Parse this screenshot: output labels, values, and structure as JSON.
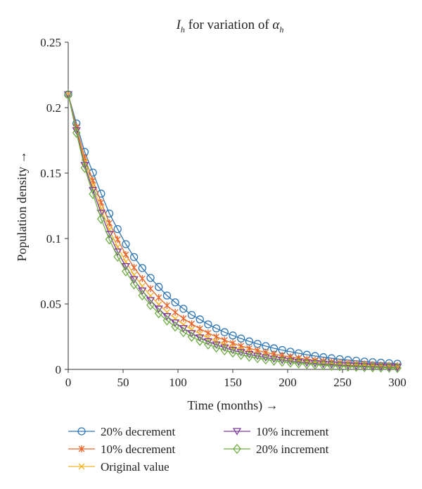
{
  "chart_data": {
    "type": "line",
    "title": {
      "main": "I",
      "main_sub": "h",
      "middle": " for variation of ",
      "param": "α",
      "param_sub": "h"
    },
    "xlabel": "Time (months) →",
    "ylabel": "Population density →",
    "xlim": [
      0,
      300
    ],
    "ylim": [
      0,
      0.25
    ],
    "xticks": [
      "0",
      "50",
      "100",
      "150",
      "200",
      "250",
      "300"
    ],
    "yticks": [
      "0",
      "0.05",
      "0.1",
      "0.15",
      "0.2",
      "0.25"
    ],
    "grid": false,
    "legend_position": "bottom",
    "x": [
      0,
      7.5,
      15,
      22.5,
      30,
      37.5,
      45,
      52.5,
      60,
      67.5,
      75,
      82.5,
      90,
      97.5,
      105,
      112.5,
      120,
      127.5,
      135,
      142.5,
      150,
      157.5,
      165,
      172.5,
      180,
      187.5,
      195,
      202.5,
      210,
      217.5,
      225,
      232.5,
      240,
      247.5,
      255,
      262.5,
      270,
      277.5,
      285,
      292.5,
      300
    ],
    "series": [
      {
        "name": "20% decrement",
        "color": "#2e75b6",
        "marker": "circle",
        "values": [
          0.21,
          0.1879,
          0.1662,
          0.1504,
          0.1343,
          0.1191,
          0.1072,
          0.0957,
          0.0858,
          0.0774,
          0.0699,
          0.063,
          0.0564,
          0.0512,
          0.0463,
          0.0416,
          0.0382,
          0.0344,
          0.0313,
          0.0284,
          0.0259,
          0.0236,
          0.0214,
          0.0195,
          0.0178,
          0.0161,
          0.0148,
          0.0135,
          0.0123,
          0.0112,
          0.0102,
          0.0093,
          0.0085,
          0.0078,
          0.0071,
          0.0066,
          0.006,
          0.0055,
          0.0051,
          0.0047,
          0.0043
        ]
      },
      {
        "name": "10% decrement",
        "color": "#e8652a",
        "marker": "asterisk",
        "values": [
          0.21,
          0.1852,
          0.1617,
          0.1443,
          0.1276,
          0.1118,
          0.0993,
          0.0877,
          0.0778,
          0.0694,
          0.0617,
          0.0549,
          0.0488,
          0.0436,
          0.0389,
          0.0348,
          0.0311,
          0.0278,
          0.0249,
          0.0223,
          0.02,
          0.0179,
          0.0161,
          0.0145,
          0.013,
          0.0117,
          0.0106,
          0.0095,
          0.0086,
          0.0078,
          0.007,
          0.0064,
          0.0058,
          0.0052,
          0.0048,
          0.0043,
          0.004,
          0.0036,
          0.0033,
          0.003,
          0.0028
        ]
      },
      {
        "name": "Original value",
        "color": "#f5b323",
        "marker": "x",
        "values": [
          0.21,
          0.1838,
          0.1586,
          0.1402,
          0.1226,
          0.1068,
          0.0936,
          0.0823,
          0.0722,
          0.0636,
          0.0562,
          0.0496,
          0.0438,
          0.0388,
          0.0343,
          0.0305,
          0.0271,
          0.024,
          0.0213,
          0.019,
          0.0169,
          0.015,
          0.0134,
          0.0119,
          0.0106,
          0.0095,
          0.0085,
          0.0076,
          0.0068,
          0.0061,
          0.0054,
          0.0049,
          0.0044,
          0.0039,
          0.0035,
          0.0032,
          0.0029,
          0.0026,
          0.0023,
          0.0021,
          0.0019
        ]
      },
      {
        "name": "10% increment",
        "color": "#7a3c9a",
        "marker": "triangle-down",
        "values": [
          0.21,
          0.1825,
          0.156,
          0.1369,
          0.1195,
          0.1032,
          0.0898,
          0.0787,
          0.0686,
          0.0601,
          0.0527,
          0.0462,
          0.0405,
          0.0356,
          0.0313,
          0.0275,
          0.0242,
          0.0213,
          0.0188,
          0.0166,
          0.0147,
          0.013,
          0.0115,
          0.0102,
          0.009,
          0.008,
          0.0071,
          0.0063,
          0.0056,
          0.005,
          0.0045,
          0.004,
          0.0036,
          0.0032,
          0.0029,
          0.0026,
          0.0023,
          0.0021,
          0.0019,
          0.0017,
          0.0015
        ]
      },
      {
        "name": "20% increment",
        "color": "#70ad47",
        "marker": "diamond",
        "values": [
          0.21,
          0.1808,
          0.154,
          0.134,
          0.115,
          0.0993,
          0.0861,
          0.0749,
          0.065,
          0.0566,
          0.0492,
          0.0429,
          0.0374,
          0.0327,
          0.0285,
          0.0249,
          0.0218,
          0.0191,
          0.0167,
          0.0146,
          0.0128,
          0.0112,
          0.0098,
          0.0086,
          0.0076,
          0.0067,
          0.0059,
          0.0052,
          0.0046,
          0.0041,
          0.0036,
          0.0032,
          0.0028,
          0.0025,
          0.0022,
          0.002,
          0.0018,
          0.0016,
          0.0014,
          0.0013,
          0.0011
        ]
      }
    ]
  }
}
